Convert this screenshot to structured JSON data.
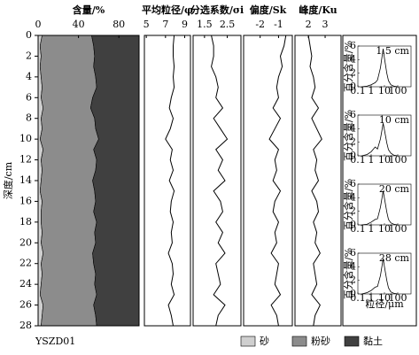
{
  "chart_data": [
    {
      "type": "area",
      "title": "含量/%",
      "y_label": "深度/cm",
      "annotation": "YSZD01",
      "depth": [
        0,
        1,
        2,
        3,
        4,
        5,
        6,
        7,
        8,
        9,
        10,
        11,
        12,
        13,
        14,
        15,
        16,
        17,
        18,
        19,
        20,
        21,
        22,
        23,
        24,
        25,
        26,
        27,
        28
      ],
      "ylim": [
        0,
        28
      ],
      "yticks": [
        0,
        2,
        4,
        6,
        8,
        10,
        12,
        14,
        16,
        18,
        20,
        22,
        24,
        26,
        28
      ],
      "xlim": [
        0,
        100
      ],
      "xticks": [
        0,
        40,
        80
      ],
      "legend": "bottom",
      "series": [
        {
          "name": "砂",
          "color": "#cfcfcf",
          "values": [
            4,
            2,
            3,
            2,
            3,
            4,
            3,
            5,
            3,
            4,
            2,
            5,
            3,
            4,
            3,
            2,
            4,
            3,
            3,
            4,
            3,
            5,
            3,
            4,
            3,
            2,
            5,
            4,
            3
          ]
        },
        {
          "name": "粉砂",
          "color": "#8c8c8c",
          "values": [
            49,
            53,
            53,
            53,
            54,
            54,
            51,
            47,
            53,
            53,
            58,
            50,
            55,
            53,
            51,
            54,
            53,
            52,
            55,
            52,
            54,
            49,
            52,
            53,
            53,
            56,
            50,
            53,
            55
          ]
        },
        {
          "name": "黏土",
          "color": "#404040",
          "values": [
            47,
            45,
            44,
            45,
            43,
            42,
            46,
            48,
            44,
            43,
            40,
            45,
            42,
            43,
            46,
            44,
            43,
            45,
            42,
            44,
            43,
            46,
            45,
            43,
            44,
            42,
            45,
            43,
            42
          ]
        }
      ]
    },
    {
      "type": "line",
      "title": "平均粒径/φ",
      "xlim": [
        4.8,
        9.6
      ],
      "xticks": [
        5,
        7,
        9
      ],
      "color": "#000000",
      "values": [
        7.9,
        7.8,
        7.8,
        7.9,
        7.8,
        7.9,
        7.6,
        7.4,
        7.8,
        7.5,
        7.0,
        7.7,
        7.5,
        7.8,
        7.4,
        7.9,
        7.6,
        7.5,
        7.8,
        7.6,
        7.7,
        7.3,
        7.7,
        7.8,
        7.6,
        7.9,
        7.3,
        7.6,
        7.8
      ]
    },
    {
      "type": "line",
      "title": "分选系数/σi",
      "xlim": [
        1.0,
        3.1
      ],
      "xticks": [
        1.5,
        2.5
      ],
      "color": "#000000",
      "values": [
        1.8,
        1.9,
        1.9,
        1.8,
        2.0,
        2.1,
        2.0,
        2.3,
        1.9,
        2.2,
        2.5,
        2.0,
        2.3,
        2.1,
        2.4,
        1.9,
        2.2,
        2.3,
        2.0,
        2.3,
        2.1,
        2.4,
        2.0,
        2.1,
        2.2,
        1.9,
        2.4,
        2.1,
        2.0
      ]
    },
    {
      "type": "line",
      "title": "偏度/Sk",
      "xlim": [
        -2.9,
        -0.25
      ],
      "xticks": [
        -2,
        -1
      ],
      "color": "#000000",
      "values": [
        -0.6,
        -0.7,
        -0.9,
        -0.8,
        -1.0,
        -1.1,
        -1.0,
        -1.3,
        -0.9,
        -1.2,
        -1.5,
        -1.0,
        -1.2,
        -1.1,
        -1.3,
        -0.9,
        -1.2,
        -1.3,
        -1.0,
        -1.2,
        -1.1,
        -1.4,
        -1.0,
        -1.1,
        -1.2,
        -0.9,
        -1.4,
        -1.1,
        -1.0
      ]
    },
    {
      "type": "line",
      "title": "峰度/Ku",
      "xlim": [
        1.2,
        3.95
      ],
      "xticks": [
        2,
        3
      ],
      "color": "#000000",
      "values": [
        2.0,
        2.1,
        2.2,
        2.1,
        2.3,
        2.4,
        2.2,
        2.6,
        2.2,
        2.5,
        2.8,
        2.3,
        2.5,
        2.4,
        2.6,
        2.2,
        2.5,
        2.6,
        2.3,
        2.5,
        2.4,
        2.7,
        2.3,
        2.4,
        2.5,
        2.2,
        2.7,
        2.4,
        2.3
      ]
    },
    {
      "type": "inset",
      "annotation": "1.5 cm",
      "y_label": "百分含量/%",
      "log_x": true,
      "xlim": [
        0.1,
        1000
      ],
      "xticks": [
        0.1,
        1,
        10,
        100
      ],
      "ylim": [
        0,
        6
      ],
      "yticks": [
        0,
        2,
        4,
        6
      ],
      "color": "#000000",
      "x": [
        0.2,
        0.5,
        1,
        2,
        3,
        5,
        8,
        10,
        15,
        20,
        30,
        50,
        100
      ],
      "values": [
        0,
        0.1,
        0.3,
        0.6,
        1.0,
        2.8,
        5.6,
        4.2,
        2.0,
        0.9,
        0.3,
        0.1,
        0
      ]
    },
    {
      "type": "inset",
      "annotation": "10 cm",
      "y_label": "百分含量/%",
      "log_x": true,
      "xlim": [
        0.1,
        1000
      ],
      "xticks": [
        0.1,
        1,
        10,
        100
      ],
      "ylim": [
        0,
        6
      ],
      "yticks": [
        0,
        2,
        4,
        6
      ],
      "color": "#000000",
      "x": [
        0.2,
        0.5,
        1,
        2,
        3,
        5,
        8,
        10,
        15,
        20,
        30,
        50,
        100
      ],
      "values": [
        0,
        0.2,
        0.6,
        1.3,
        1.0,
        2.5,
        4.8,
        3.8,
        1.9,
        0.9,
        0.4,
        0.1,
        0
      ]
    },
    {
      "type": "inset",
      "annotation": "20 cm",
      "y_label": "百分含量/%",
      "log_x": true,
      "xlim": [
        0.1,
        1000
      ],
      "xticks": [
        0.1,
        1,
        10,
        100
      ],
      "ylim": [
        0,
        6
      ],
      "yticks": [
        0,
        2,
        4,
        6
      ],
      "color": "#000000",
      "x": [
        0.2,
        0.5,
        1,
        2,
        3,
        5,
        8,
        10,
        15,
        20,
        30,
        50,
        100
      ],
      "values": [
        0,
        0.1,
        0.4,
        0.8,
        0.9,
        2.6,
        5.0,
        3.9,
        1.9,
        0.8,
        0.3,
        0.1,
        0
      ]
    },
    {
      "type": "inset",
      "annotation": "28 cm",
      "y_label": "百分含量/%",
      "x_label": "粒径/μm",
      "log_x": true,
      "xlim": [
        0.1,
        1000
      ],
      "xticks": [
        0.1,
        1,
        10,
        100
      ],
      "ylim": [
        0,
        6
      ],
      "yticks": [
        0,
        2,
        4,
        6
      ],
      "color": "#000000",
      "x": [
        0.2,
        0.5,
        1,
        2,
        3,
        5,
        8,
        10,
        15,
        20,
        30,
        50,
        100
      ],
      "values": [
        0,
        0.2,
        0.5,
        1.0,
        1.1,
        2.7,
        5.2,
        4.0,
        2.0,
        0.9,
        0.3,
        0.1,
        0
      ]
    }
  ]
}
